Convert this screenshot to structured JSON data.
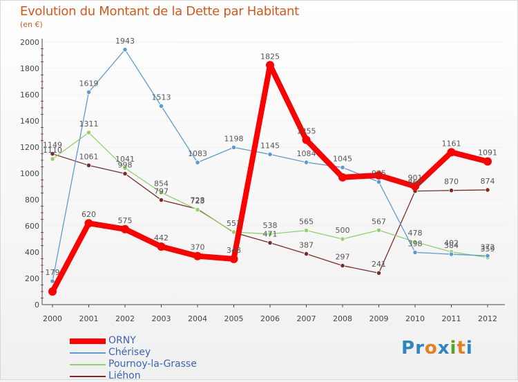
{
  "title": "Evolution du Montant de la Dette par Habitant",
  "subtitle": "(en €)",
  "logo": {
    "text": "Proxiti",
    "letters": [
      "P",
      "r",
      "o",
      "x",
      "i",
      "t",
      "i"
    ],
    "colors": [
      "#2e86c1",
      "#2e86c1",
      "#e67e22",
      "#2e86c1",
      "#5aa02c",
      "#e67e22",
      "#2e86c1"
    ]
  },
  "chart_data": {
    "type": "line",
    "x": [
      "2000",
      "2001",
      "2002",
      "2003",
      "2004",
      "2005",
      "2006",
      "2007",
      "2008",
      "2009",
      "2010",
      "2011",
      "2012"
    ],
    "ylim": [
      0,
      2000
    ],
    "yticks": [
      "0",
      "200",
      "400",
      "600",
      "800",
      "1000",
      "1200",
      "1400",
      "1600",
      "1800",
      "2000"
    ],
    "grid": true,
    "legend_position": "bottom-left",
    "series": [
      {
        "name": "ORNY",
        "color": "#ff0000",
        "values": [
          100,
          620,
          575,
          442,
          370,
          348,
          1825,
          1255,
          970,
          985,
          901,
          1161,
          1091
        ],
        "labels": [
          "",
          "620",
          "575",
          "442",
          "370",
          "348",
          "1825",
          "1255",
          "",
          "",
          "901",
          "1161",
          "1091"
        ]
      },
      {
        "name": "Chérisey",
        "color": "#5b9bd5",
        "values": [
          179,
          1619,
          1943,
          1513,
          1083,
          1198,
          1145,
          1084,
          1045,
          935,
          398,
          384,
          372
        ],
        "labels": [
          "179",
          "1619",
          "1943",
          "1513",
          "1083",
          "1198",
          "1145",
          "1084",
          "1045",
          "935",
          "398",
          "384",
          "372"
        ]
      },
      {
        "name": "Pournoy-la-Grasse",
        "color": "#8fd16b",
        "values": [
          1110,
          1311,
          1041,
          854,
          723,
          553,
          538,
          565,
          500,
          567,
          478,
          402,
          359
        ],
        "labels": [
          "1110",
          "1311",
          "1041",
          "854",
          "723",
          "553",
          "538",
          "565",
          "500",
          "567",
          "478",
          "402",
          "359"
        ]
      },
      {
        "name": "Liéhon",
        "color": "#7b2b2b",
        "values": [
          1149,
          1061,
          998,
          797,
          728,
          550,
          471,
          387,
          297,
          241,
          865,
          870,
          874
        ],
        "labels": [
          "1149",
          "1061",
          "998",
          "797",
          "728",
          "",
          "471",
          "387",
          "297",
          "241",
          "865",
          "870",
          "874"
        ]
      }
    ]
  }
}
